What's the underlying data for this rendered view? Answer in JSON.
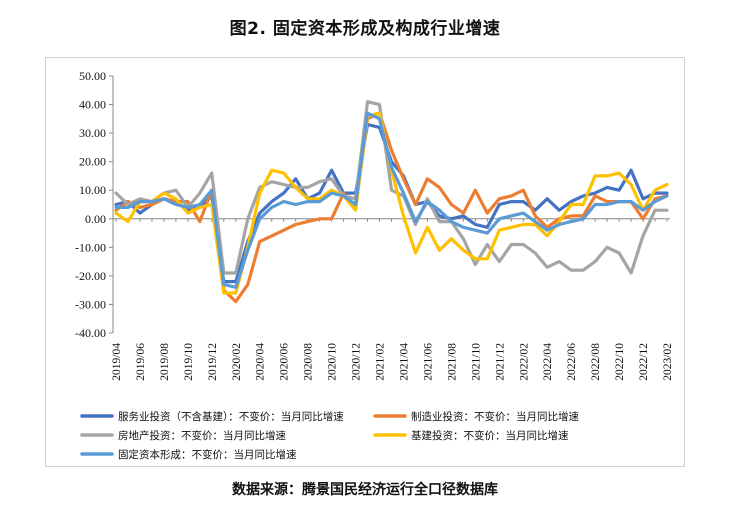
{
  "title": "图2. 固定资本形成及构成行业增速",
  "source": "数据来源：腾景国民经济运行全口径数据库",
  "chart_data": {
    "type": "line",
    "title": "图2. 固定资本形成及构成行业增速",
    "ylim": [
      -40,
      50
    ],
    "yticks": [
      "50.00",
      "40.00",
      "30.00",
      "20.00",
      "10.00",
      "0.00",
      "-10.00",
      "-20.00",
      "-30.00",
      "-40.00"
    ],
    "ytick_values": [
      50,
      40,
      30,
      20,
      10,
      0,
      -10,
      -20,
      -30,
      -40
    ],
    "x": [
      "2019/04",
      "2019/05",
      "2019/06",
      "2019/07",
      "2019/08",
      "2019/09",
      "2019/10",
      "2019/11",
      "2019/12",
      "2020/01",
      "2020/02",
      "2020/03",
      "2020/04",
      "2020/05",
      "2020/06",
      "2020/07",
      "2020/08",
      "2020/09",
      "2020/10",
      "2020/11",
      "2020/12",
      "2021/01",
      "2021/02",
      "2021/03",
      "2021/04",
      "2021/05",
      "2021/06",
      "2021/07",
      "2021/08",
      "2021/09",
      "2021/10",
      "2021/11",
      "2021/12",
      "2022/01",
      "2022/02",
      "2022/03",
      "2022/04",
      "2022/05",
      "2022/06",
      "2022/07",
      "2022/08",
      "2022/09",
      "2022/10",
      "2022/11",
      "2022/12",
      "2023/01",
      "2023/02"
    ],
    "xtick_labels": [
      "2019/04",
      "2019/06",
      "2019/08",
      "2019/10",
      "2019/12",
      "2020/02",
      "2020/04",
      "2020/06",
      "2020/08",
      "2020/10",
      "2020/12",
      "2021/02",
      "2021/04",
      "2021/06",
      "2021/08",
      "2021/10",
      "2021/12",
      "2022/02",
      "2022/04",
      "2022/06",
      "2022/08",
      "2022/10",
      "2022/12",
      "2023/02"
    ],
    "grid": false,
    "legend_position": "bottom",
    "series": [
      {
        "name": "服务业投资（不含基建）：不变价：当月同比增速",
        "color": "#4472C4",
        "values": [
          5,
          6,
          2,
          5,
          7,
          6,
          3,
          4,
          8,
          -22,
          -22,
          -8,
          2,
          6,
          9,
          14,
          7,
          9,
          17,
          9,
          9,
          33,
          32,
          20,
          15,
          5,
          6,
          1,
          0,
          1,
          -2,
          -3,
          5,
          6,
          6,
          3,
          7,
          3,
          6,
          8,
          9,
          11,
          10,
          17,
          7,
          9,
          9
        ]
      },
      {
        "name": "制造业投资：不变价：当月同比增速",
        "color": "#ED7D31",
        "values": [
          3,
          6,
          4,
          5,
          7,
          6,
          6,
          -1,
          10,
          -25,
          -29,
          -23,
          -8,
          -6,
          -4,
          -2,
          -1,
          0,
          0,
          9,
          4,
          35,
          37,
          24,
          14,
          5,
          14,
          11,
          5,
          2,
          10,
          2,
          7,
          8,
          10,
          1,
          -3,
          0,
          1,
          1,
          8,
          6,
          6,
          6,
          0,
          7,
          8
        ]
      },
      {
        "name": "房地产投资：不变价：当月同比增速",
        "color": "#A5A5A5",
        "values": [
          9,
          5,
          7,
          6,
          9,
          10,
          4,
          9,
          16,
          -19,
          -19,
          0,
          11,
          13,
          12,
          11,
          11,
          13,
          14,
          8,
          7,
          41,
          40,
          10,
          8,
          -2,
          7,
          -1,
          -1,
          -7,
          -16,
          -9,
          -15,
          -9,
          -9,
          -12,
          -17,
          -15,
          -18,
          -18,
          -15,
          -10,
          -12,
          -19,
          -6,
          3,
          3
        ]
      },
      {
        "name": "基建投资：不变价：当月同比增速",
        "color": "#FFC000",
        "values": [
          2,
          -1,
          6,
          6,
          9,
          7,
          2,
          4,
          5,
          -26,
          -26,
          -10,
          9,
          17,
          16,
          11,
          7,
          7,
          10,
          8,
          3,
          36,
          37,
          17,
          1,
          -12,
          -3,
          -11,
          -7,
          -11,
          -14,
          -14,
          -4,
          -3,
          -2,
          -2,
          -6,
          -1,
          5,
          5,
          15,
          15,
          16,
          12,
          3,
          10,
          12
        ]
      },
      {
        "name": "固定资本形成：不变价：当月同比增速",
        "color": "#5B9BD5",
        "values": [
          4,
          4,
          6,
          6,
          7,
          5,
          4,
          5,
          10,
          -23,
          -24,
          -11,
          0,
          4,
          6,
          5,
          6,
          6,
          9,
          8,
          5,
          37,
          35,
          18,
          9,
          -1,
          6,
          3,
          -1,
          -3,
          -4,
          -5,
          0,
          1,
          2,
          -1,
          -4,
          -2,
          -1,
          0,
          5,
          5,
          6,
          6,
          3,
          6,
          8
        ]
      }
    ]
  }
}
